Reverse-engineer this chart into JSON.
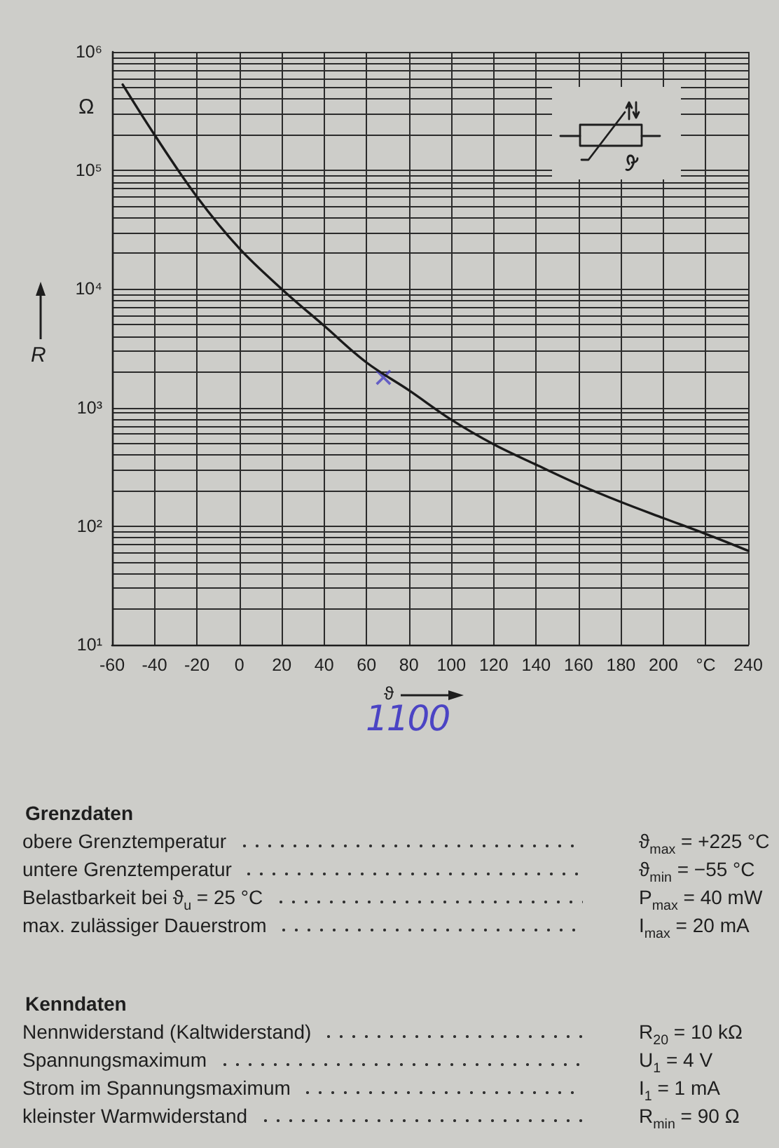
{
  "chart_data": [
    {
      "type": "line",
      "xlabel": "ϑ",
      "ylabel": "R",
      "annotations": [
        "Ω",
        "1100"
      ],
      "x": [
        -55,
        -40,
        -20,
        0,
        20,
        40,
        60,
        80,
        100,
        120,
        140,
        160,
        180,
        200,
        220,
        240
      ],
      "series": [
        {
          "color": "#1a1a1a",
          "values": [
            530000,
            200000,
            60000,
            22000,
            10000,
            4900,
            2400,
            1400,
            790,
            490,
            330,
            225,
            160,
            117,
            86,
            62
          ]
        },
        {
          "type": "scatter",
          "marker": "cross",
          "color": "#4b44c4",
          "x": [
            68
          ],
          "values": [
            1800
          ]
        }
      ],
      "xlim": [
        -60,
        240
      ],
      "xticks": [
        -60,
        -40,
        -20,
        0,
        20,
        40,
        60,
        80,
        100,
        120,
        140,
        160,
        180,
        200,
        {
          "value": 220,
          "label": "°C"
        },
        240
      ],
      "ylim": [
        10,
        1000000
      ],
      "yticks": [
        {
          "value": 10,
          "label": "10¹"
        },
        {
          "value": 20,
          "label": null
        },
        {
          "value": 30,
          "label": null
        },
        {
          "value": 40,
          "label": null
        },
        {
          "value": 50,
          "label": null
        },
        {
          "value": 60,
          "label": null
        },
        {
          "value": 70,
          "label": null
        },
        {
          "value": 80,
          "label": null
        },
        {
          "value": 90,
          "label": null
        },
        {
          "value": 100,
          "label": "10²"
        },
        {
          "value": 200,
          "label": null
        },
        {
          "value": 300,
          "label": null
        },
        {
          "value": 400,
          "label": null
        },
        {
          "value": 500,
          "label": null
        },
        {
          "value": 600,
          "label": null
        },
        {
          "value": 700,
          "label": null
        },
        {
          "value": 800,
          "label": null
        },
        {
          "value": 900,
          "label": null
        },
        {
          "value": 1000,
          "label": "10³"
        },
        {
          "value": 2000,
          "label": null
        },
        {
          "value": 3000,
          "label": null
        },
        {
          "value": 4000,
          "label": null
        },
        {
          "value": 5000,
          "label": null
        },
        {
          "value": 6000,
          "label": null
        },
        {
          "value": 7000,
          "label": null
        },
        {
          "value": 8000,
          "label": null
        },
        {
          "value": 9000,
          "label": null
        },
        {
          "value": 10000,
          "label": "10⁴"
        },
        {
          "value": 20000,
          "label": null
        },
        {
          "value": 30000,
          "label": null
        },
        {
          "value": 40000,
          "label": null
        },
        {
          "value": 50000,
          "label": null
        },
        {
          "value": 60000,
          "label": null
        },
        {
          "value": 70000,
          "label": null
        },
        {
          "value": 80000,
          "label": null
        },
        {
          "value": 90000,
          "label": null
        },
        {
          "value": 100000,
          "label": "10⁵"
        },
        {
          "value": 200000,
          "label": null
        },
        {
          "value": 300000,
          "label": null
        },
        {
          "value": 400000,
          "label": null
        },
        {
          "value": 500000,
          "label": null
        },
        {
          "value": 600000,
          "label": null
        },
        {
          "value": 700000,
          "label": null
        },
        {
          "value": 800000,
          "label": null
        },
        {
          "value": 900000,
          "label": null
        },
        {
          "value": 1000000,
          "label": "10⁶"
        }
      ],
      "log": "y",
      "grid": true,
      "marker": "none",
      "line_style": "solid"
    },
    {
      "type": "other",
      "title": "Grenzdaten",
      "annotations": [
        "obere Grenztemperatur",
        "ϑ$_{max}$ = +225 °C",
        "untere Grenztemperatur",
        "ϑ$_{min}$ = −55 °C",
        "Belastbarkeit bei ϑ$_{u}$ = 25 °C",
        "P$_{max}$ = 40 mW",
        "max. zulässiger Dauerstrom",
        "I$_{max}$ = 20 mA"
      ]
    },
    {
      "type": "other",
      "title": "Kenndaten",
      "annotations": [
        "Nennwiderstand (Kaltwiderstand)",
        "R$_{20}$ = 10 kΩ",
        "Spannungsmaximum",
        "U$_{1}$ = 4 V",
        "Strom im Spannungsmaximum",
        "I$_{1}$ = 1 mA",
        "kleinster Warmwiderstand",
        "R$_{min}$ = 90 Ω"
      ]
    }
  ]
}
